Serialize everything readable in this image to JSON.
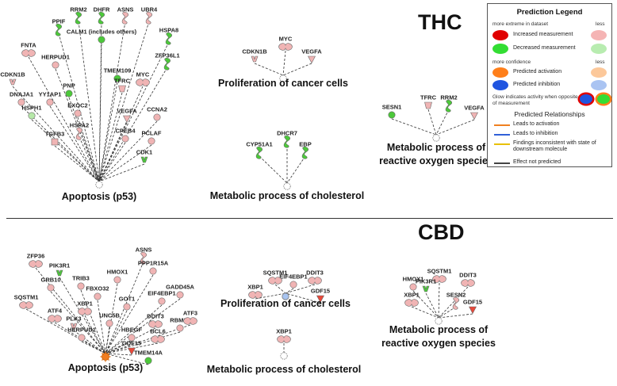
{
  "sections": [
    {
      "heading": "THC",
      "groups": [
        {
          "title": "Apoptosis (p53)",
          "nodes": [
            {
              "label": "PPIF",
              "shape": "blob",
              "color": "green"
            },
            {
              "label": "RRM2",
              "shape": "blob",
              "color": "green"
            },
            {
              "label": "DHFR",
              "shape": "blob",
              "color": "green"
            },
            {
              "label": "ASNS",
              "shape": "blob",
              "color": "pink"
            },
            {
              "label": "UBR4",
              "shape": "blob",
              "color": "pink"
            },
            {
              "label": "CALM1 (includes others)",
              "shape": "circle",
              "color": "green"
            },
            {
              "label": "HSPA8",
              "shape": "blob",
              "color": "green"
            },
            {
              "label": "FNTA",
              "shape": "tube",
              "color": "pink"
            },
            {
              "label": "HERPUD1",
              "shape": "circle",
              "color": "pink"
            },
            {
              "label": "TMEM109",
              "shape": "circle",
              "color": "green"
            },
            {
              "label": "ZFP36L1",
              "shape": "blob",
              "color": "green"
            },
            {
              "label": "TFRC",
              "shape": "trap",
              "color": "pink"
            },
            {
              "label": "MYC",
              "shape": "tube",
              "color": "pink"
            },
            {
              "label": "PNP",
              "shape": "circle",
              "color": "green"
            },
            {
              "label": "CDKN1B",
              "shape": "vee",
              "color": "pink"
            },
            {
              "label": "DNAJA1",
              "shape": "circle",
              "color": "pink"
            },
            {
              "label": "YY1AP1",
              "shape": "circle",
              "color": "pink"
            },
            {
              "label": "EXOC2",
              "shape": "circle",
              "color": "pink"
            },
            {
              "label": "VEGFA",
              "shape": "tri",
              "color": "pink"
            },
            {
              "label": "CCNA2",
              "shape": "circle",
              "color": "pink"
            },
            {
              "label": "HSPH1",
              "shape": "circle",
              "color": "lightgreen"
            },
            {
              "label": "HSPA2",
              "shape": "blob",
              "color": "pink"
            },
            {
              "label": "CPEB4",
              "shape": "circle",
              "color": "pink"
            },
            {
              "label": "PCLAF",
              "shape": "circle",
              "color": "pink"
            },
            {
              "label": "TGFB3",
              "shape": "sq",
              "color": "pink"
            },
            {
              "label": "CDK1",
              "shape": "vee",
              "color": "green"
            }
          ]
        },
        {
          "title": "Proliferation of cancer cells",
          "nodes": [
            {
              "label": "MYC",
              "shape": "tube",
              "color": "pink"
            },
            {
              "label": "CDKN1B",
              "shape": "vee",
              "color": "pink"
            },
            {
              "label": "VEGFA",
              "shape": "tri",
              "color": "pink"
            }
          ]
        },
        {
          "title": "Metabolic process of cholesterol",
          "nodes": [
            {
              "label": "DHCR7",
              "shape": "blob",
              "color": "green"
            },
            {
              "label": "CYP51A1",
              "shape": "blob",
              "color": "green"
            },
            {
              "label": "EBP",
              "shape": "blob",
              "color": "green"
            }
          ]
        },
        {
          "title": "Metabolic process of reactive oxygen species",
          "title_lines": [
            "Metabolic process of",
            "reactive oxygen species"
          ],
          "nodes": [
            {
              "label": "SESN1",
              "shape": "circle",
              "color": "green"
            },
            {
              "label": "TFRC",
              "shape": "trap",
              "color": "pink"
            },
            {
              "label": "RRM2",
              "shape": "blob",
              "color": "green"
            },
            {
              "label": "VEGFA",
              "shape": "tri",
              "color": "pink"
            }
          ]
        }
      ]
    },
    {
      "heading": "CBD",
      "groups": [
        {
          "title": "Apoptosis (p53)",
          "nodes": [
            {
              "label": "TRIB3",
              "shape": "circle",
              "color": "pink"
            },
            {
              "label": "HMOX1",
              "shape": "circle",
              "color": "pink"
            },
            {
              "label": "ASNS",
              "shape": "blob",
              "color": "pink"
            },
            {
              "label": "FBXO32",
              "shape": "circle",
              "color": "pink"
            },
            {
              "label": "PPP1R15A",
              "shape": "circle",
              "color": "pink"
            },
            {
              "label": "PIK3R1",
              "shape": "vee",
              "color": "green"
            },
            {
              "label": "ZFP36",
              "shape": "tube",
              "color": "pink"
            },
            {
              "label": "XBP1",
              "shape": "tube",
              "color": "pink"
            },
            {
              "label": "GOT1",
              "shape": "circle",
              "color": "pink"
            },
            {
              "label": "EIF4EBP1",
              "shape": "circle",
              "color": "pink"
            },
            {
              "label": "GRB10",
              "shape": "circle",
              "color": "pink"
            },
            {
              "label": "UNC5B",
              "shape": "circle",
              "color": "pink"
            },
            {
              "label": "GADD45A",
              "shape": "circle",
              "color": "pink"
            },
            {
              "label": "SQSTM1",
              "shape": "tube",
              "color": "pink"
            },
            {
              "label": "PLK3",
              "shape": "vee",
              "color": "pink"
            },
            {
              "label": "HBEGF",
              "shape": "circle",
              "color": "pink"
            },
            {
              "label": "DDIT3",
              "shape": "tube",
              "color": "pink"
            },
            {
              "label": "RBM24",
              "shape": "circle",
              "color": "pink"
            },
            {
              "label": "HERPUD1",
              "shape": "circle",
              "color": "pink"
            },
            {
              "label": "BCL6",
              "shape": "tube",
              "color": "pink"
            },
            {
              "label": "ATF4",
              "shape": "tube",
              "color": "pink"
            },
            {
              "label": "ATF3",
              "shape": "tube",
              "color": "pink"
            },
            {
              "label": "GDF15",
              "shape": "tri",
              "color": "red"
            },
            {
              "label": "TMEM14A",
              "shape": "circle",
              "color": "green"
            }
          ]
        },
        {
          "title": "Proliferation of cancer cells",
          "nodes": [
            {
              "label": "EIF4EBP1",
              "shape": "circle",
              "color": "pink"
            },
            {
              "label": "SQSTM1",
              "shape": "tube",
              "color": "pink"
            },
            {
              "label": "DDIT3",
              "shape": "tube",
              "color": "pink"
            },
            {
              "label": "XBP1",
              "shape": "tube",
              "color": "pink"
            },
            {
              "label": "GDF15",
              "shape": "tri",
              "color": "red"
            }
          ]
        },
        {
          "title": "Metabolic process of cholesterol",
          "nodes": [
            {
              "label": "XBP1",
              "shape": "tube",
              "color": "pink"
            }
          ]
        },
        {
          "title": "Metabolic process of reactive oxygen species",
          "title_lines": [
            "Metabolic process of",
            "reactive oxygen species"
          ],
          "nodes": [
            {
              "label": "HMOX1",
              "shape": "circle",
              "color": "pink"
            },
            {
              "label": "SQSTM1",
              "shape": "tube",
              "color": "pink"
            },
            {
              "label": "DDIT3",
              "shape": "tube",
              "color": "pink"
            },
            {
              "label": "PIK3R1",
              "shape": "vee",
              "color": "green"
            },
            {
              "label": "SESN2",
              "shape": "blob",
              "color": "pink"
            },
            {
              "label": "XBP1",
              "shape": "tube",
              "color": "pink"
            },
            {
              "label": "GDF15",
              "shape": "tri",
              "color": "red"
            }
          ]
        }
      ]
    }
  ],
  "legend": {
    "title": "Prediction Legend",
    "more_extreme": "more extreme in dataset",
    "less": "less",
    "increased": "Increased measurement",
    "decreased": "Decreased measurement",
    "more_confidence": "more confidence",
    "less2": "less",
    "pred_activation": "Predicted activation",
    "pred_inhibition": "Predicted inhibition",
    "glow_text": "Glow indicates activity when opposite of measurement",
    "relationships_title": "Predicted Relationships",
    "leads_activation": "Leads to activation",
    "leads_inhibition": "Leads to inhibition",
    "findings_inconsistent": "Findings inconsistent with state of downstream molecule",
    "effect_not_predicted": "Effect not predicted"
  },
  "colors": {
    "green": "#4cc83a",
    "lightgreen": "#b6e8a8",
    "pink": "#f0b4b4",
    "red": "#e8483a",
    "orange": "#f07d20",
    "blue": "#a8c4f0",
    "increased": "#e00000",
    "decreased": "#33dd33",
    "lessIncreased": "#f5b4b4",
    "lessDecreased": "#b8ecb0",
    "activation": "#ff7f1a",
    "inhibition": "#2055e0",
    "lessActivation": "#fcc89a",
    "lessInhibition": "#aac4f2",
    "relActivation": "#f08020",
    "relInhibition": "#3060d8",
    "relInconsistent": "#e8c000",
    "relNotPredicted": "#444444"
  }
}
